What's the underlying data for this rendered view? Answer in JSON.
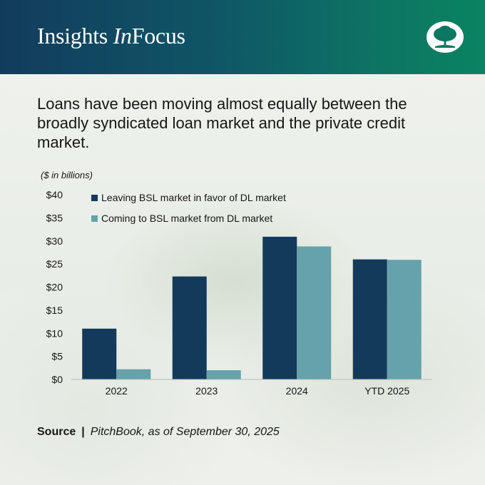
{
  "header": {
    "brand_part1": "Insights ",
    "brand_part2": "In",
    "brand_part3": "Focus",
    "logo_icon": "tree-logo-icon",
    "gradient_colors": [
      "#123c5c",
      "#098462"
    ]
  },
  "headline": "Loans have been moving almost equally between the broadly syndicated loan market and the private credit market.",
  "chart_data": {
    "type": "bar",
    "unit_note": "($ in billions)",
    "categories": [
      "2022",
      "2023",
      "2024",
      "YTD 2025"
    ],
    "series": [
      {
        "name": "Leaving BSL market in favor of DL market",
        "values": [
          11,
          22.3,
          30.9,
          26.0
        ],
        "color": "#123a5b"
      },
      {
        "name": "Coming to BSL market from DL market",
        "values": [
          2.2,
          2.0,
          28.8,
          25.9
        ],
        "color": "#66a2ab"
      }
    ],
    "ylim": [
      0,
      40
    ],
    "yticks": [
      0,
      5,
      10,
      15,
      20,
      25,
      30,
      35,
      40
    ],
    "ytick_labels": [
      "$0",
      "$5",
      "$10",
      "$15",
      "$20",
      "$25",
      "$30",
      "$35",
      "$40"
    ],
    "legend_position": "top-left",
    "grid": false
  },
  "source": {
    "label": "Source",
    "separator": "|",
    "text": "PitchBook, as of September 30, 2025"
  }
}
